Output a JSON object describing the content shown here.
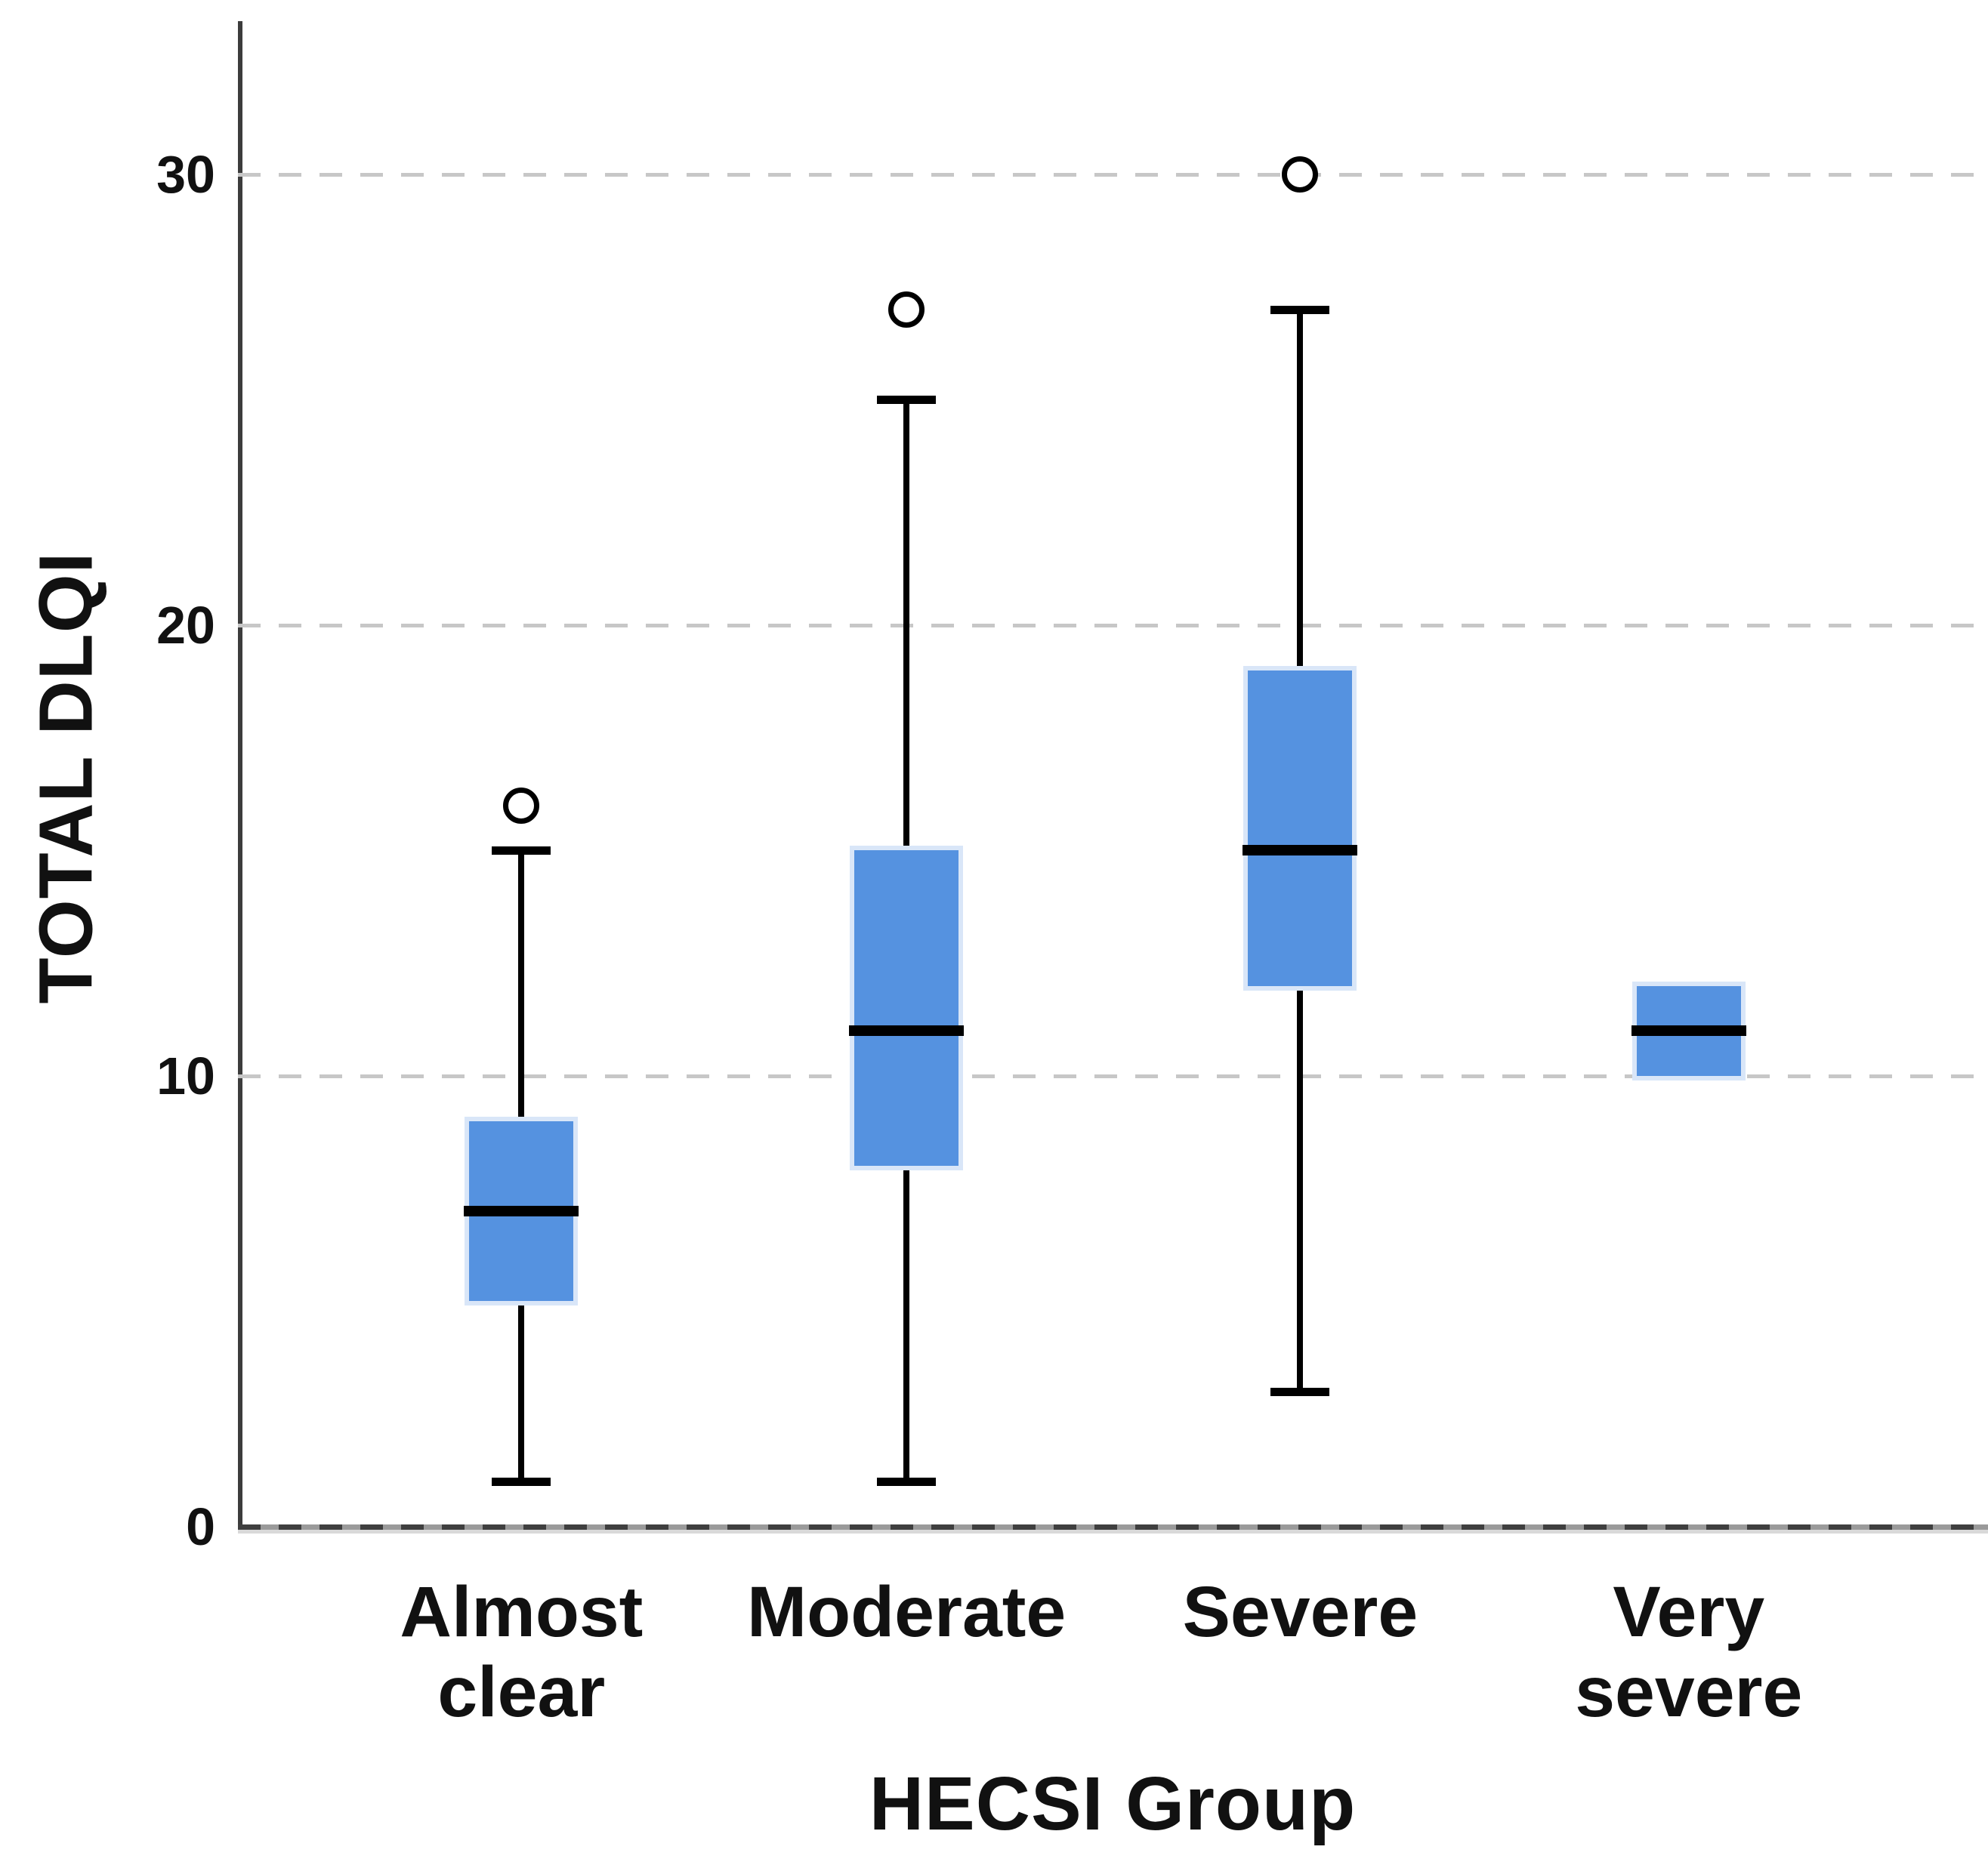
{
  "figure": {
    "background": "#ffffff"
  },
  "chart_data": {
    "type": "boxplot",
    "title": "",
    "xlabel": "HECSI Group",
    "ylabel": "TOTAL DLQI",
    "ylim": [
      0,
      33.4
    ],
    "yticks": [
      0,
      10,
      20,
      30
    ],
    "gridlines": [
      10,
      20,
      30
    ],
    "grid_style": "dashed",
    "legend": "none",
    "categories": [
      "Almost clear",
      "Moderate",
      "Severe",
      "Very severe"
    ],
    "category_display": [
      "Almost\nclear",
      "Moderate",
      "Severe",
      "Very\nsevere"
    ],
    "series": [
      {
        "label": "Almost clear",
        "whisker_low": 1,
        "q1": 5,
        "median": 7,
        "q3": 9,
        "whisker_high": 15,
        "outliers": [
          16
        ]
      },
      {
        "label": "Moderate",
        "whisker_low": 1,
        "q1": 8,
        "median": 11,
        "q3": 15,
        "whisker_high": 25,
        "outliers": [
          27
        ]
      },
      {
        "label": "Severe",
        "whisker_low": 3,
        "q1": 12,
        "median": 15,
        "q3": 19,
        "whisker_high": 27,
        "outliers": [
          30
        ]
      },
      {
        "label": "Very severe",
        "whisker_low": 10,
        "q1": 10,
        "median": 11,
        "q3": 12,
        "whisker_high": 12,
        "outliers": []
      }
    ],
    "centers_frac": [
      0.162,
      0.382,
      0.607,
      0.829
    ],
    "colors": {
      "box_fill": "#5592e0",
      "box_border": "#d9e6f8",
      "median": "#000000",
      "whisker": "#000000",
      "outlier_stroke": "#000000",
      "gridline": "#c7c7c7",
      "axis": "#3c3c3c"
    }
  }
}
